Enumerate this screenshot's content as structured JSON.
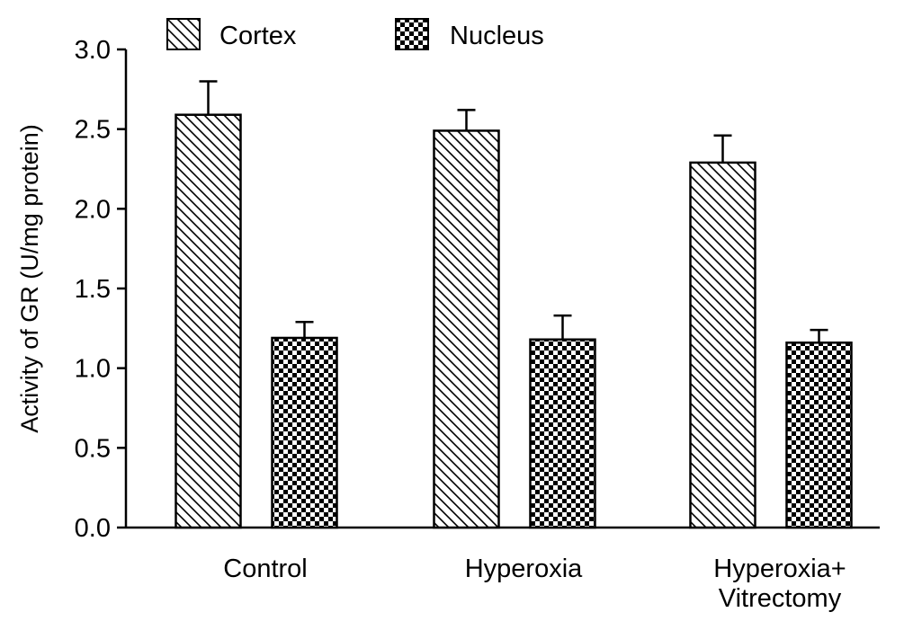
{
  "chart_data": {
    "type": "bar",
    "title": "",
    "xlabel": "",
    "ylabel": "Activity of GR (U/mg protein)",
    "ylim": [
      0,
      3.0
    ],
    "yticks": [
      "0.0",
      "0.5",
      "1.0",
      "1.5",
      "2.0",
      "2.5",
      "3.0"
    ],
    "categories": [
      [
        "Control"
      ],
      [
        "Hyperoxia"
      ],
      [
        "Hyperoxia+",
        "Vitrectomy"
      ]
    ],
    "series": [
      {
        "name": "Cortex",
        "pattern": "diagonal-hatch",
        "values": [
          2.59,
          2.49,
          2.29
        ],
        "errors": [
          0.21,
          0.13,
          0.17
        ]
      },
      {
        "name": "Nucleus",
        "pattern": "checkerboard",
        "values": [
          1.19,
          1.18,
          1.16
        ],
        "errors": [
          0.1,
          0.15,
          0.08
        ]
      }
    ],
    "legend_position": "top",
    "grid": false,
    "colors": {
      "bar_fill": "#ffffff",
      "stroke": "#000000"
    }
  }
}
